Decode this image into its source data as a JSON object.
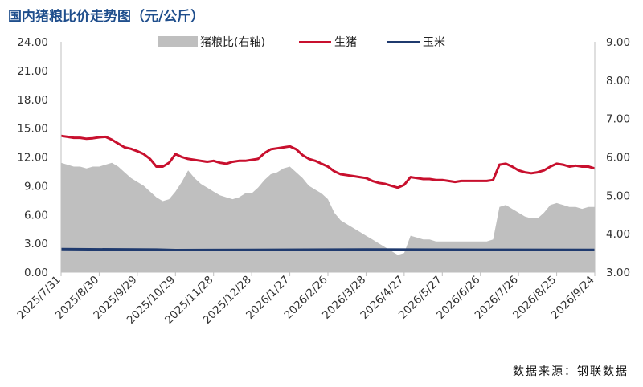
{
  "title": "国内猪粮比价走势图（元/公斤）",
  "source": "数据来源：钢联数据",
  "chart_data": {
    "type": "line",
    "title": "国内猪粮比价走势图（元/公斤）",
    "xlabel": "",
    "ylabel": "",
    "ylim": [
      0,
      24
    ],
    "y2lim": [
      3,
      9
    ],
    "yticks": [
      "0.00",
      "3.00",
      "6.00",
      "9.00",
      "12.00",
      "15.00",
      "18.00",
      "21.00",
      "24.00"
    ],
    "y2ticks": [
      "3.00",
      "4.00",
      "5.00",
      "6.00",
      "7.00",
      "8.00",
      "9.00"
    ],
    "x_labels": [
      "2025/7/31",
      "2025/8/30",
      "2025/9/29",
      "2025/10/29",
      "2025/11/28",
      "2025/12/28",
      "2026/1/27",
      "2026/2/26",
      "2026/3/28",
      "2026/4/27",
      "2026/5/27",
      "2026/6/26",
      "2026/7/26",
      "2026/8/25",
      "2026/9/24"
    ],
    "legend_position": "top-center",
    "grid": false,
    "colors": {
      "ratio": "#bfbfbf",
      "hog": "#c8102e",
      "corn": "#1f3a6e"
    },
    "series": [
      {
        "name": "猪粮比(右轴)",
        "kind": "area",
        "axis": "right",
        "x": [
          "2025/7/31",
          "2025/8/5",
          "2025/8/10",
          "2025/8/15",
          "2025/8/20",
          "2025/8/25",
          "2025/8/30",
          "2025/9/4",
          "2025/9/9",
          "2025/9/14",
          "2025/9/19",
          "2025/9/24",
          "2025/9/29",
          "2025/10/4",
          "2025/10/9",
          "2025/10/14",
          "2025/10/19",
          "2025/10/24",
          "2025/10/29",
          "2025/11/3",
          "2025/11/8",
          "2025/11/13",
          "2025/11/18",
          "2025/11/23",
          "2025/11/28",
          "2025/12/3",
          "2025/12/8",
          "2025/12/13",
          "2025/12/18",
          "2025/12/23",
          "2025/12/28",
          "2026/1/2",
          "2026/1/7",
          "2026/1/12",
          "2026/1/17",
          "2026/1/22",
          "2026/1/27",
          "2026/2/1",
          "2026/2/6",
          "2026/2/11",
          "2026/2/16",
          "2026/2/21",
          "2026/2/26",
          "2026/3/3",
          "2026/3/8",
          "2026/3/13",
          "2026/3/18",
          "2026/3/23",
          "2026/3/28",
          "2026/4/2",
          "2026/4/7",
          "2026/4/12",
          "2026/4/17",
          "2026/4/22",
          "2026/4/27",
          "2026/5/2",
          "2026/5/7",
          "2026/5/12",
          "2026/5/17",
          "2026/5/22",
          "2026/5/27",
          "2026/6/1",
          "2026/6/6",
          "2026/6/11",
          "2026/6/16",
          "2026/6/21",
          "2026/6/26",
          "2026/7/1",
          "2026/7/6",
          "2026/7/11",
          "2026/7/16",
          "2026/7/21",
          "2026/7/26",
          "2026/7/31",
          "2026/8/5",
          "2026/8/10",
          "2026/8/15",
          "2026/8/20",
          "2026/8/25",
          "2026/8/30",
          "2026/9/4",
          "2026/9/9",
          "2026/9/14",
          "2026/9/19",
          "2026/9/24"
        ],
        "values": [
          5.85,
          5.8,
          5.75,
          5.75,
          5.7,
          5.75,
          5.75,
          5.8,
          5.85,
          5.75,
          5.6,
          5.45,
          5.35,
          5.25,
          5.1,
          4.95,
          4.85,
          4.9,
          5.1,
          5.35,
          5.65,
          5.45,
          5.3,
          5.2,
          5.1,
          5.0,
          4.95,
          4.9,
          4.95,
          5.05,
          5.05,
          5.2,
          5.4,
          5.55,
          5.6,
          5.7,
          5.75,
          5.6,
          5.45,
          5.25,
          5.15,
          5.05,
          4.9,
          4.55,
          4.35,
          4.25,
          4.15,
          4.05,
          3.95,
          3.85,
          3.75,
          3.65,
          3.55,
          3.45,
          3.5,
          3.95,
          3.9,
          3.85,
          3.85,
          3.8,
          3.8,
          3.8,
          3.8,
          3.8,
          3.8,
          3.8,
          3.8,
          3.8,
          3.85,
          4.7,
          4.75,
          4.65,
          4.55,
          4.45,
          4.4,
          4.4,
          4.55,
          4.75,
          4.8,
          4.75,
          4.7,
          4.7,
          4.65,
          4.7,
          4.7
        ]
      },
      {
        "name": "生猪",
        "kind": "line",
        "axis": "left",
        "x": [
          "2025/7/31",
          "2025/8/5",
          "2025/8/10",
          "2025/8/15",
          "2025/8/20",
          "2025/8/25",
          "2025/8/30",
          "2025/9/4",
          "2025/9/9",
          "2025/9/14",
          "2025/9/19",
          "2025/9/24",
          "2025/9/29",
          "2025/10/4",
          "2025/10/9",
          "2025/10/14",
          "2025/10/19",
          "2025/10/24",
          "2025/10/29",
          "2025/11/3",
          "2025/11/8",
          "2025/11/13",
          "2025/11/18",
          "2025/11/23",
          "2025/11/28",
          "2025/12/3",
          "2025/12/8",
          "2025/12/13",
          "2025/12/18",
          "2025/12/23",
          "2025/12/28",
          "2026/1/2",
          "2026/1/7",
          "2026/1/12",
          "2026/1/17",
          "2026/1/22",
          "2026/1/27",
          "2026/2/1",
          "2026/2/6",
          "2026/2/11",
          "2026/2/16",
          "2026/2/21",
          "2026/2/26",
          "2026/3/3",
          "2026/3/8",
          "2026/3/13",
          "2026/3/18",
          "2026/3/23",
          "2026/3/28",
          "2026/4/2",
          "2026/4/7",
          "2026/4/12",
          "2026/4/17",
          "2026/4/22",
          "2026/4/27",
          "2026/5/2",
          "2026/5/7",
          "2026/5/12",
          "2026/5/17",
          "2026/5/22",
          "2026/5/27",
          "2026/6/1",
          "2026/6/6",
          "2026/6/11",
          "2026/6/16",
          "2026/6/21",
          "2026/6/26",
          "2026/7/1",
          "2026/7/6",
          "2026/7/11",
          "2026/7/16",
          "2026/7/21",
          "2026/7/26",
          "2026/7/31",
          "2026/8/5",
          "2026/8/10",
          "2026/8/15",
          "2026/8/20",
          "2026/8/25",
          "2026/8/30",
          "2026/9/4",
          "2026/9/9",
          "2026/9/14",
          "2026/9/19",
          "2026/9/24"
        ],
        "values": [
          14.2,
          14.1,
          14.0,
          14.0,
          13.9,
          13.95,
          14.05,
          14.1,
          13.8,
          13.4,
          13.0,
          12.85,
          12.6,
          12.3,
          11.8,
          11.0,
          11.0,
          11.4,
          12.3,
          12.0,
          11.8,
          11.7,
          11.6,
          11.5,
          11.6,
          11.4,
          11.3,
          11.5,
          11.6,
          11.6,
          11.7,
          11.8,
          12.4,
          12.8,
          12.9,
          13.0,
          13.1,
          12.8,
          12.2,
          11.8,
          11.6,
          11.3,
          11.0,
          10.5,
          10.2,
          10.1,
          10.0,
          9.9,
          9.8,
          9.5,
          9.3,
          9.2,
          9.0,
          8.8,
          9.1,
          9.9,
          9.8,
          9.7,
          9.7,
          9.6,
          9.6,
          9.5,
          9.4,
          9.5,
          9.5,
          9.5,
          9.5,
          9.5,
          9.6,
          11.2,
          11.3,
          11.0,
          10.6,
          10.4,
          10.3,
          10.4,
          10.6,
          11.0,
          11.3,
          11.2,
          11.0,
          11.1,
          11.0,
          11.0,
          10.8
        ]
      },
      {
        "name": "玉米",
        "kind": "line",
        "axis": "left",
        "x": [
          "2025/7/31",
          "2025/10/14",
          "2025/10/29",
          "2025/12/28",
          "2026/3/28",
          "2026/6/26",
          "2026/9/24"
        ],
        "values": [
          2.4,
          2.35,
          2.3,
          2.32,
          2.36,
          2.33,
          2.32
        ]
      }
    ]
  }
}
